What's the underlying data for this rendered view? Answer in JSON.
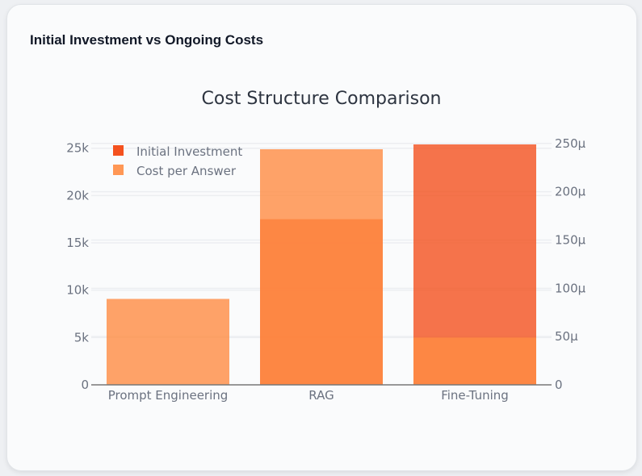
{
  "card": {
    "title": "Initial Investment vs Ongoing Costs"
  },
  "chart_data": {
    "type": "bar",
    "title": "Cost Structure Comparison",
    "categories": [
      "Prompt Engineering",
      "RAG",
      "Fine-Tuning"
    ],
    "barmode": "overlay",
    "series": [
      {
        "name": "Initial Investment",
        "axis": "left",
        "color": "#f4511e",
        "values": [
          0,
          17500,
          25400
        ]
      },
      {
        "name": "Cost per Answer",
        "axis": "right",
        "color": "#ff8c42",
        "values": [
          8.9e-05,
          0.000244,
          4.9e-05
        ]
      }
    ],
    "y_left": {
      "range": [
        0,
        25400
      ],
      "ticks": [
        0,
        5000,
        10000,
        15000,
        20000,
        25000
      ],
      "tick_labels": [
        "0",
        "5k",
        "10k",
        "15k",
        "20k",
        "25k"
      ]
    },
    "y_right": {
      "range": [
        0,
        0.000249
      ],
      "ticks": [
        0,
        5e-05,
        0.0001,
        0.00015,
        0.0002,
        0.00025
      ],
      "tick_labels": [
        "0",
        "50µ",
        "100µ",
        "150µ",
        "200µ",
        "250µ"
      ]
    },
    "grid": true,
    "legend_position": "top-left"
  }
}
